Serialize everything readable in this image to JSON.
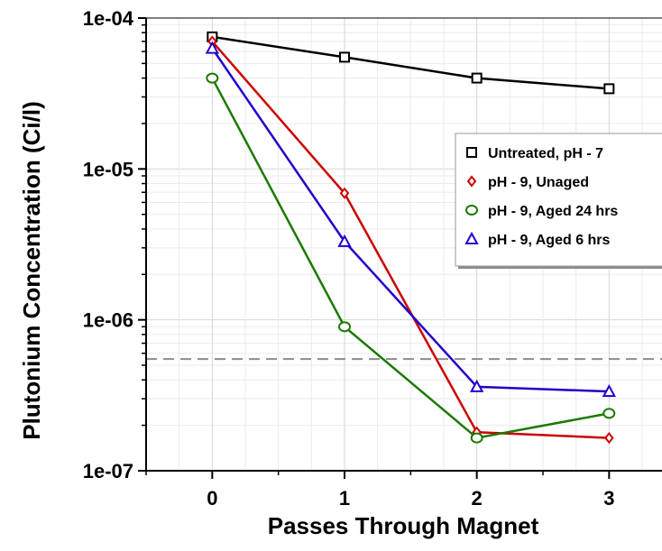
{
  "chart_data": {
    "type": "line",
    "title": "",
    "xlabel": "Passes Through Magnet",
    "ylabel": "Plutonium Concentration (Ci/l)",
    "x_ticks": [
      0,
      1,
      2,
      3
    ],
    "x_tick_labels": [
      "0",
      "1",
      "2",
      "3"
    ],
    "xlim": [
      -0.5,
      3.4
    ],
    "y_scale": "log",
    "ylim": [
      1e-07,
      0.0001
    ],
    "y_ticks": [
      1e-07,
      1e-06,
      1e-05,
      0.0001
    ],
    "y_tick_labels": [
      "1e-07",
      "1e-06",
      "1e-05",
      "1e-04"
    ],
    "grid": true,
    "legend_position": "right",
    "reference_line": {
      "y": 5.5e-07,
      "style": "dashed",
      "color": "#8c8c8c"
    },
    "series": [
      {
        "name": "Untreated, pH - 7",
        "marker": "square",
        "color": "#000000",
        "x": [
          0,
          1,
          2,
          3
        ],
        "y": [
          7.5e-05,
          5.5e-05,
          4e-05,
          3.4e-05
        ]
      },
      {
        "name": "pH - 9, Unaged",
        "marker": "diamond",
        "color": "#cc0000",
        "x": [
          0,
          1,
          2,
          3
        ],
        "y": [
          7e-05,
          6.9e-06,
          1.8e-07,
          1.65e-07
        ]
      },
      {
        "name": "pH - 9, Aged 24 hrs",
        "marker": "circle",
        "color": "#1a7a00",
        "x": [
          0,
          1,
          2,
          3
        ],
        "y": [
          4e-05,
          9e-07,
          1.65e-07,
          2.4e-07
        ]
      },
      {
        "name": "pH - 9, Aged 6 hrs",
        "marker": "triangle",
        "color": "#2200cc",
        "x": [
          0,
          1,
          2,
          3
        ],
        "y": [
          6.3e-05,
          3.3e-06,
          3.6e-07,
          3.35e-07
        ]
      }
    ]
  }
}
